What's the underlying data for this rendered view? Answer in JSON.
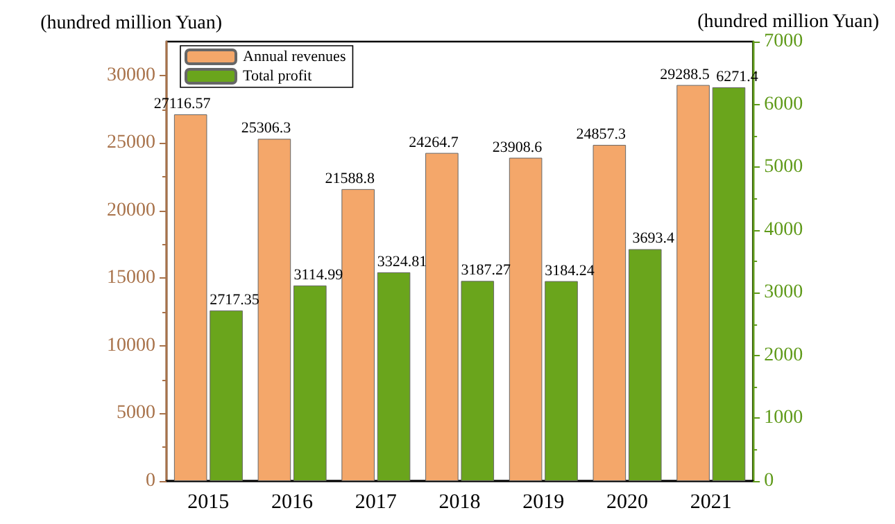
{
  "chart_data": {
    "type": "bar",
    "ylabel": "(hundred million Yuan)",
    "y2label": "(hundred million Yuan)",
    "categories": [
      "2015",
      "2016",
      "2017",
      "2018",
      "2019",
      "2020",
      "2021"
    ],
    "series": [
      {
        "name": "Annual revenues",
        "color": "#f4a76a",
        "values": [
          27116.57,
          25306.3,
          21588.8,
          24264.7,
          23908.6,
          24857.3,
          29288.5
        ]
      },
      {
        "name": "Total profit",
        "color": "#6aa51c",
        "axis": "y2",
        "values": [
          2717.35,
          3114.99,
          3324.81,
          3187.27,
          3184.24,
          3693.4,
          6271.4
        ]
      }
    ],
    "ylim": [
      0,
      32500
    ],
    "yticks": [
      0,
      5000,
      10000,
      15000,
      20000,
      25000,
      30000
    ],
    "y2lim": [
      0,
      7000
    ],
    "y2ticks": [
      0,
      1000,
      2000,
      3000,
      4000,
      5000,
      6000,
      7000
    ],
    "data_labels": true,
    "legend": "top left",
    "grid": false
  }
}
